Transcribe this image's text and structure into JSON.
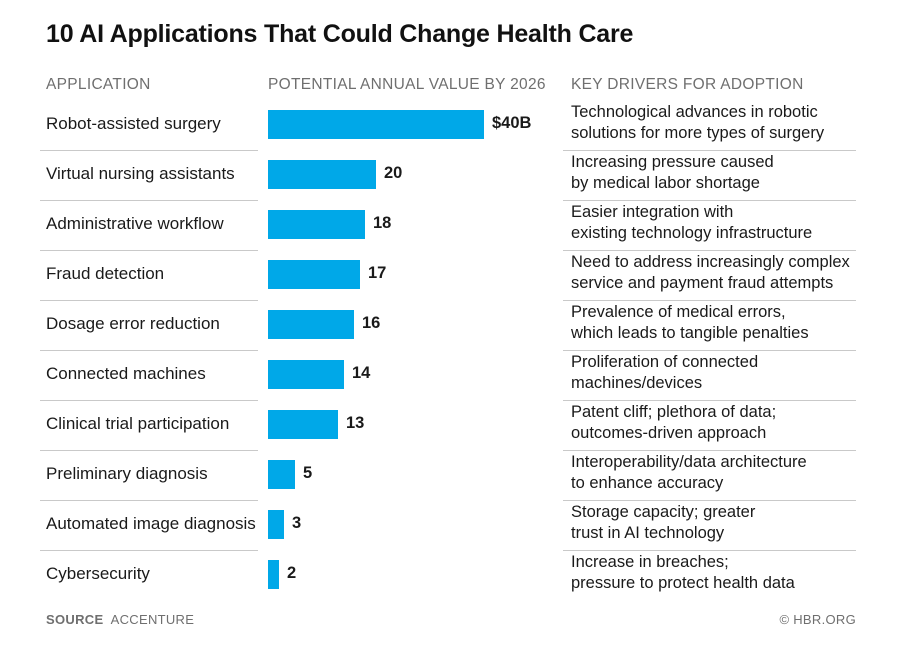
{
  "title": "10 AI Applications That Could Change Health Care",
  "headers": {
    "application": "APPLICATION",
    "value": "POTENTIAL ANNUAL VALUE BY 2026",
    "drivers": "KEY DRIVERS FOR ADOPTION"
  },
  "chart_data": {
    "type": "bar",
    "orientation": "horizontal",
    "title": "10 AI Applications That Could Change Health Care",
    "xlabel": "POTENTIAL ANNUAL VALUE BY 2026",
    "ylabel": "APPLICATION",
    "xlim": [
      0,
      40
    ],
    "grid": false,
    "bar_color": "#00a8e8",
    "categories": [
      "Robot-assisted surgery",
      "Virtual nursing assistants",
      "Administrative workflow",
      "Fraud detection",
      "Dosage error reduction",
      "Connected machines",
      "Clinical trial participation",
      "Preliminary diagnosis",
      "Automated image diagnosis",
      "Cybersecurity"
    ],
    "values": [
      40,
      20,
      18,
      17,
      16,
      14,
      13,
      5,
      3,
      2
    ],
    "value_labels": [
      "$40B",
      "20",
      "18",
      "17",
      "16",
      "14",
      "13",
      "5",
      "3",
      "2"
    ],
    "drivers": [
      [
        "Technological advances in robotic",
        "solutions for more types of surgery"
      ],
      [
        "Increasing pressure caused",
        "by medical labor shortage"
      ],
      [
        "Easier integration with",
        "existing technology infrastructure"
      ],
      [
        "Need to address increasingly complex",
        "service and payment fraud attempts"
      ],
      [
        "Prevalence of medical errors,",
        "which leads to tangible penalties"
      ],
      [
        "Proliferation of connected",
        "machines/devices"
      ],
      [
        "Patent cliff; plethora of data;",
        "outcomes-driven approach"
      ],
      [
        "Interoperability/data architecture",
        "to enhance accuracy"
      ],
      [
        "Storage capacity; greater",
        "trust in AI technology"
      ],
      [
        "Increase in breaches;",
        "pressure to protect health data"
      ]
    ]
  },
  "footer": {
    "source_label": "SOURCE",
    "source": "ACCENTURE",
    "credit": "© HBR.ORG"
  }
}
